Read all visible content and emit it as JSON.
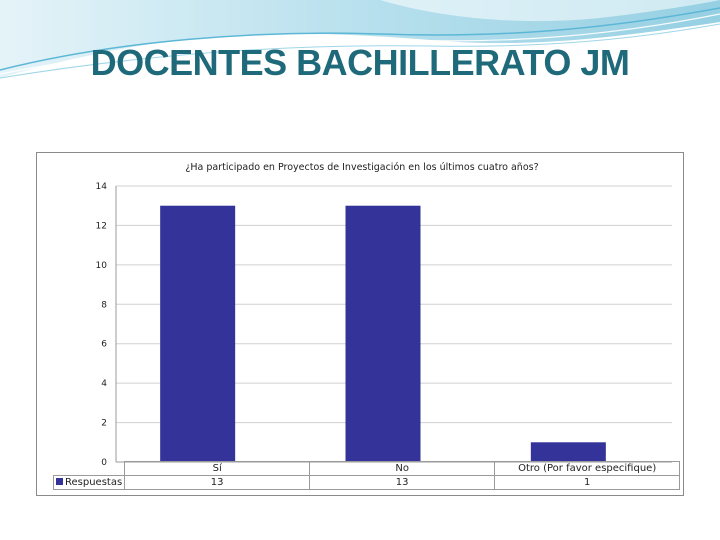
{
  "slide": {
    "title": "DOCENTES BACHILLERATO JM"
  },
  "colors": {
    "title": "#1f6a7a",
    "bar": "#333399",
    "grid": "#d0d0d0",
    "accent_waves": "#7fc8e0"
  },
  "chart_data": {
    "type": "bar",
    "title": "¿Ha participado en Proyectos de Investigación en los últimos cuatro años?",
    "categories": [
      "Sí",
      "No",
      "Otro (Por favor especifique)"
    ],
    "series": [
      {
        "name": "Respuestas",
        "values": [
          13,
          13,
          1
        ]
      }
    ],
    "ylim": [
      0,
      14
    ],
    "yticks": [
      "0",
      "2",
      "4",
      "6",
      "8",
      "10",
      "12",
      "14"
    ],
    "grid": true,
    "legend": "bottom-left, in data table"
  }
}
